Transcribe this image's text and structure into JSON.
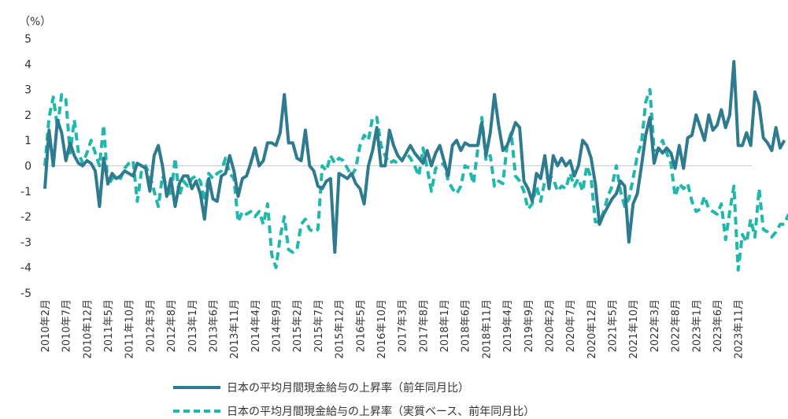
{
  "chart_data": {
    "type": "line",
    "unit_label": "（%）",
    "ylim": [
      -5,
      5
    ],
    "yticks": [
      5,
      4,
      3,
      2,
      1,
      0,
      -1,
      -2,
      -3,
      -4,
      -5
    ],
    "x_start": "2010-02",
    "x_end": "2023-12",
    "xtick_labels": [
      "2010年2月",
      "2010年7月",
      "2010年12月",
      "2011年5月",
      "2011年10月",
      "2012年3月",
      "2012年8月",
      "2013年1月",
      "2013年6月",
      "2013年11月",
      "2014年4月",
      "2014年9月",
      "2015年2月",
      "2015年7月",
      "2015年12月",
      "2016年5月",
      "2016年10月",
      "2017年3月",
      "2017年8月",
      "2018年1月",
      "2018年6月",
      "2018年11月",
      "2019年4月",
      "2019年9月",
      "2020年2月",
      "2020年7月",
      "2020年12月",
      "2021年5月",
      "2021年10月",
      "2022年3月",
      "2022年8月",
      "2023年1月",
      "2023年6月",
      "2023年11月"
    ],
    "series": [
      {
        "name": "日本の平均月間現金給与の上昇率（前年同月比）",
        "color": "#2e7a8f",
        "style": "solid",
        "values": [
          -0.9,
          1.4,
          0.0,
          1.8,
          1.3,
          0.2,
          0.9,
          0.4,
          0.1,
          0.0,
          0.2,
          0.1,
          -0.2,
          -1.6,
          0.3,
          -0.7,
          -0.3,
          -0.5,
          -0.4,
          -0.2,
          -0.3,
          -0.4,
          0.1,
          0.0,
          -0.1,
          -1.0,
          0.4,
          0.8,
          0.0,
          -1.2,
          -0.5,
          -1.6,
          -0.7,
          -0.4,
          -0.4,
          -0.9,
          -0.6,
          -1.1,
          -2.1,
          -0.5,
          -1.3,
          -1.4,
          -0.4,
          -0.3,
          0.4,
          -0.2,
          -1.2,
          -0.5,
          -0.4,
          0.1,
          0.7,
          0.0,
          0.2,
          0.9,
          0.9,
          0.8,
          1.3,
          2.8,
          0.9,
          0.9,
          0.3,
          0.2,
          1.4,
          0.0,
          -0.2,
          -0.8,
          -0.9,
          -0.6,
          -0.5,
          -3.4,
          -0.3,
          -0.4,
          -0.5,
          -0.3,
          -0.7,
          -0.9,
          -1.5,
          0.0,
          0.6,
          1.5,
          0.0,
          0.0,
          1.4,
          0.8,
          0.4,
          0.2,
          0.5,
          0.8,
          0.5,
          0.3,
          0.1,
          0.6,
          0.0,
          0.5,
          0.8,
          0.2,
          -0.4,
          0.8,
          1.0,
          0.6,
          0.9,
          0.8,
          0.8,
          0.8,
          1.7,
          0.4,
          1.3,
          2.8,
          1.6,
          0.6,
          0.8,
          1.2,
          1.7,
          1.5,
          -0.6,
          -0.9,
          -1.4,
          -0.3,
          -0.5,
          0.4,
          -0.9,
          0.4,
          0.0,
          0.3,
          0.0,
          0.2,
          -0.4,
          0.0,
          1.0,
          0.8,
          0.3,
          -0.7,
          -2.3,
          -1.9,
          -1.6,
          -1.3,
          -1.1,
          -0.6,
          -0.8,
          -3.0,
          -1.5,
          -1.1,
          0.0,
          1.2,
          1.9,
          0.1,
          0.7,
          0.5,
          0.7,
          0.5,
          -0.1,
          0.8,
          -0.1,
          1.1,
          1.2,
          2.0,
          1.5,
          1.0,
          2.0,
          1.4,
          1.6,
          2.2,
          1.5,
          2.0,
          4.1,
          0.8,
          0.8,
          1.3,
          0.8,
          2.9,
          2.4,
          1.1,
          0.9,
          0.6,
          1.5,
          0.7,
          1.0
        ]
      },
      {
        "name": "日本の平均月間現金給与の上昇率（実質ベース、前年同月比）",
        "color": "#20b7ad",
        "style": "dashed",
        "values": [
          0.0,
          1.9,
          2.7,
          1.5,
          2.8,
          2.6,
          0.5,
          1.8,
          0.5,
          0.1,
          0.5,
          1.0,
          0.5,
          0.0,
          1.6,
          -0.8,
          -0.5,
          -0.4,
          -0.5,
          -0.1,
          0.1,
          0.2,
          -1.4,
          -0.2,
          0.0,
          -0.4,
          -1.0,
          -1.6,
          -0.4,
          -0.8,
          -1.2,
          0.3,
          -1.2,
          -0.6,
          -0.8,
          -0.5,
          -0.4,
          -0.6,
          -1.4,
          -0.3,
          -0.5,
          -0.3,
          -0.2,
          0.3,
          -0.3,
          -0.5,
          -2.2,
          -1.8,
          -1.9,
          -1.8,
          -2.0,
          -1.8,
          -2.3,
          -1.5,
          -3.5,
          -4.0,
          -2.8,
          -2.0,
          -3.3,
          -3.4,
          -3.3,
          -2.3,
          -2.1,
          -2.5,
          -2.6,
          -2.5,
          0.0,
          -0.2,
          0.4,
          0.1,
          0.3,
          0.2,
          -0.1,
          -0.4,
          -0.1,
          0.8,
          1.2,
          1.0,
          1.9,
          1.9,
          0.8,
          0.4,
          0.1,
          0.2,
          0.1,
          0.2,
          0.5,
          0.3,
          0.0,
          -0.4,
          0.7,
          -0.1,
          -1.0,
          -0.1,
          0.0,
          0.1,
          -0.6,
          -0.9,
          -1.1,
          -0.8,
          0.0,
          -0.1,
          -0.7,
          0.6,
          1.9,
          0.2,
          0.4,
          -0.8,
          -0.6,
          -0.7,
          0.8,
          1.3,
          -0.4,
          -0.6,
          -1.0,
          -1.7,
          -1.5,
          -0.8,
          -1.4,
          -0.6,
          -0.4,
          -0.5,
          -1.0,
          -0.8,
          -0.9,
          -0.3,
          -0.8,
          -0.5,
          -1.0,
          0.0,
          -0.5,
          -2.2,
          -2.2,
          -1.8,
          -1.2,
          -0.8,
          0.0,
          -1.0,
          -1.6,
          -1.3,
          -0.5,
          0.4,
          0.9,
          2.5,
          3.0,
          0.6,
          0.6,
          1.0,
          0.5,
          0.1,
          -1.2,
          -0.7,
          -0.9,
          -0.7,
          -1.4,
          -1.8,
          -1.7,
          -1.2,
          -1.7,
          -1.8,
          -1.9,
          -1.5,
          -2.9,
          -1.8,
          -0.8,
          -4.1,
          -2.7,
          -3.0,
          -2.1,
          -2.8,
          -0.9,
          -2.5,
          -2.6,
          -2.8,
          -2.6,
          -2.3,
          -2.3,
          -1.9
        ]
      }
    ]
  }
}
